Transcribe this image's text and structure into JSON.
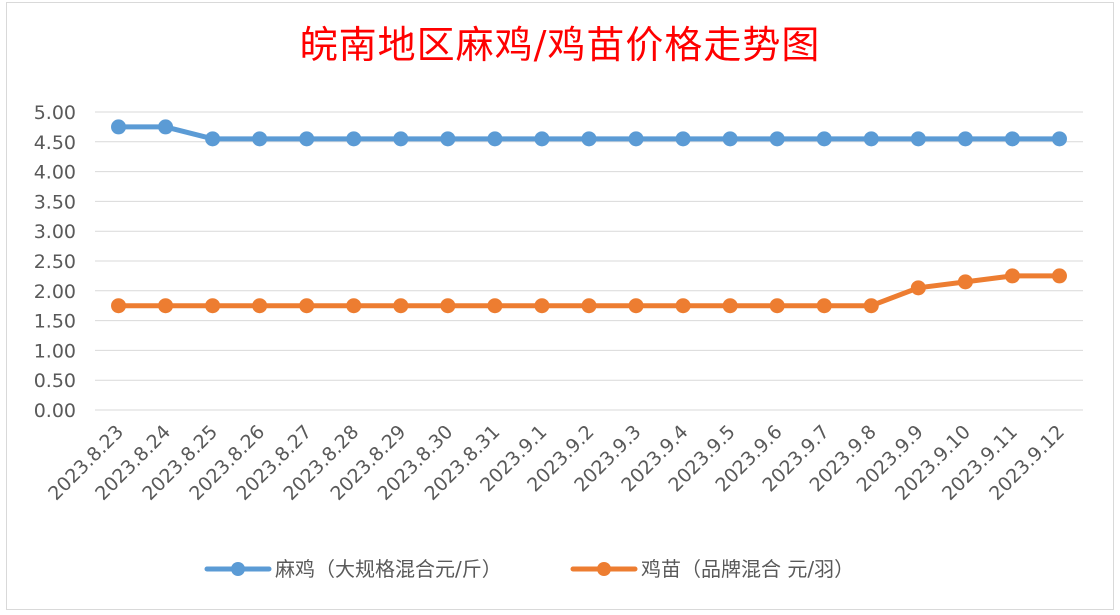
{
  "chart_data": {
    "type": "line",
    "title": "皖南地区麻鸡/鸡苗价格走势图",
    "categories": [
      "2023.8.23",
      "2023.8.24",
      "2023.8.25",
      "2023.8.26",
      "2023.8.27",
      "2023.8.28",
      "2023.8.29",
      "2023.8.30",
      "2023.8.31",
      "2023.9.1",
      "2023.9.2",
      "2023.9.3",
      "2023.9.4",
      "2023.9.5",
      "2023.9.6",
      "2023.9.7",
      "2023.9.8",
      "2023.9.9",
      "2023.9.10",
      "2023.9.11",
      "2023.9.12"
    ],
    "series": [
      {
        "name": "麻鸡（大规格混合元/斤）",
        "color": "#5b9bd5",
        "values": [
          4.75,
          4.75,
          4.55,
          4.55,
          4.55,
          4.55,
          4.55,
          4.55,
          4.55,
          4.55,
          4.55,
          4.55,
          4.55,
          4.55,
          4.55,
          4.55,
          4.55,
          4.55,
          4.55,
          4.55,
          4.55
        ]
      },
      {
        "name": "鸡苗（品牌混合 元/羽）",
        "color": "#ed7d31",
        "values": [
          1.75,
          1.75,
          1.75,
          1.75,
          1.75,
          1.75,
          1.75,
          1.75,
          1.75,
          1.75,
          1.75,
          1.75,
          1.75,
          1.75,
          1.75,
          1.75,
          1.75,
          2.05,
          2.15,
          2.25,
          2.25
        ]
      }
    ],
    "ylim": [
      0,
      5
    ],
    "yticks": [
      "0.00",
      "0.50",
      "1.00",
      "1.50",
      "2.00",
      "2.50",
      "3.00",
      "3.50",
      "4.00",
      "4.50",
      "5.00"
    ],
    "grid": true,
    "legend": "bottom"
  }
}
